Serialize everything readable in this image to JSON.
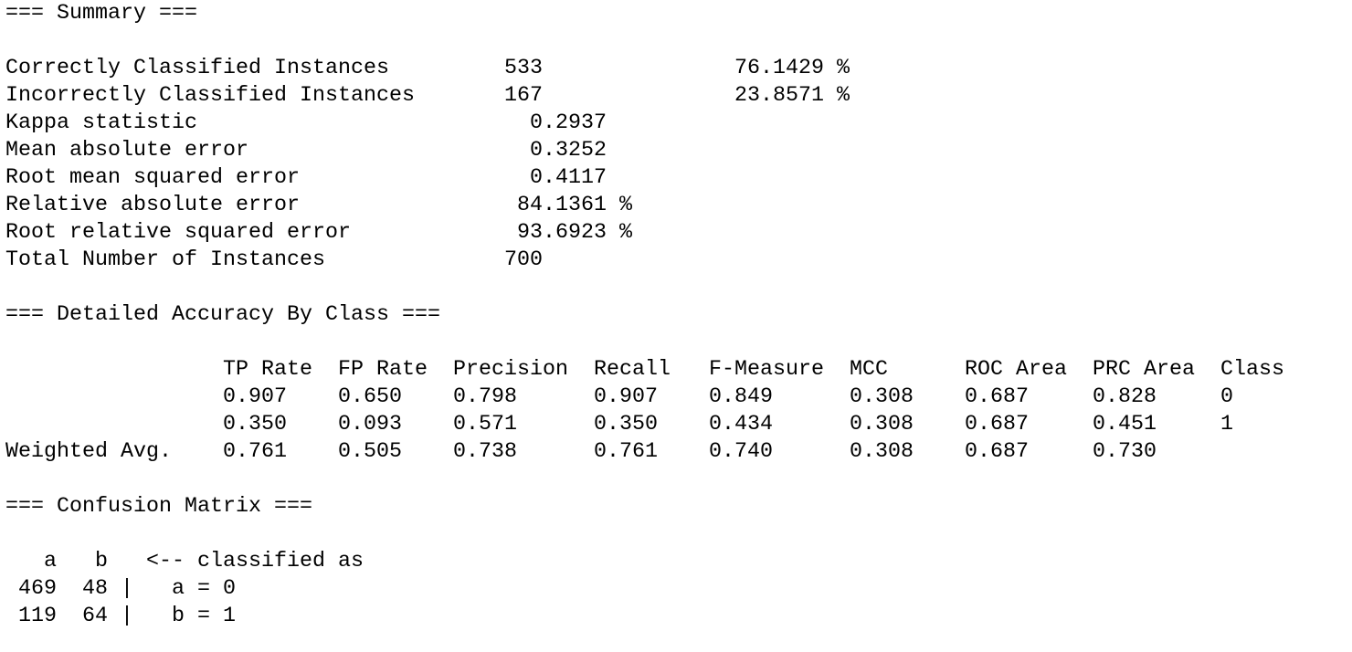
{
  "summary": {
    "title": "=== Summary ===",
    "rows": [
      {
        "label": "Correctly Classified Instances",
        "value": "533",
        "percent": "76.1429 %"
      },
      {
        "label": "Incorrectly Classified Instances",
        "value": "167",
        "percent": "23.8571 %"
      },
      {
        "label": "Kappa statistic",
        "value": "0.2937"
      },
      {
        "label": "Mean absolute error",
        "value": "0.3252"
      },
      {
        "label": "Root mean squared error",
        "value": "0.4117"
      },
      {
        "label": "Relative absolute error",
        "value": "84.1361 %"
      },
      {
        "label": "Root relative squared error",
        "value": "93.6923 %"
      },
      {
        "label": "Total Number of Instances",
        "value": "700"
      }
    ]
  },
  "accuracy": {
    "title": "=== Detailed Accuracy By Class ===",
    "header": [
      "TP Rate",
      "FP Rate",
      "Precision",
      "Recall",
      "F-Measure",
      "MCC",
      "ROC Area",
      "PRC Area",
      "Class"
    ],
    "rows": [
      {
        "values": [
          "0.907",
          "0.650",
          "0.798",
          "0.907",
          "0.849",
          "0.308",
          "0.687",
          "0.828"
        ],
        "class": "0"
      },
      {
        "values": [
          "0.350",
          "0.093",
          "0.571",
          "0.350",
          "0.434",
          "0.308",
          "0.687",
          "0.451"
        ],
        "class": "1"
      },
      {
        "label": "Weighted Avg.",
        "values": [
          "0.761",
          "0.505",
          "0.738",
          "0.761",
          "0.740",
          "0.308",
          "0.687",
          "0.730"
        ]
      }
    ]
  },
  "confusion": {
    "title": "=== Confusion Matrix ===",
    "header": [
      "a",
      "b"
    ],
    "legend": "<-- classified as",
    "rows": [
      {
        "values": [
          "469",
          "48"
        ],
        "label": "a = 0"
      },
      {
        "values": [
          "119",
          "64"
        ],
        "label": "b = 1"
      }
    ]
  }
}
